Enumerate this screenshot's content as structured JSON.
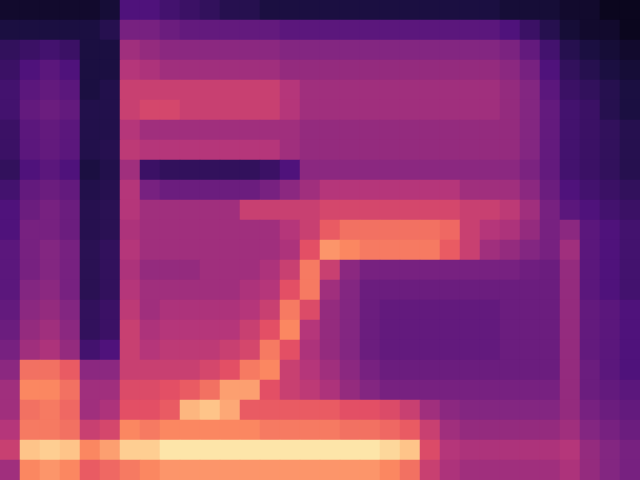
{
  "chart_data": {
    "type": "heatmap",
    "tick_labels": false,
    "color_range": [
      0,
      100
    ],
    "values": [
      [
        8,
        8,
        8,
        8,
        8,
        10,
        25,
        25,
        22,
        20,
        18,
        15,
        15,
        12,
        12,
        12,
        12,
        12,
        12,
        12,
        12,
        12,
        12,
        12,
        12,
        10,
        10,
        10,
        8,
        8,
        5,
        5
      ],
      [
        12,
        12,
        12,
        12,
        12,
        15,
        35,
        35,
        32,
        30,
        30,
        30,
        30,
        30,
        28,
        28,
        28,
        28,
        28,
        28,
        28,
        28,
        28,
        28,
        28,
        25,
        20,
        15,
        10,
        8,
        8,
        5
      ],
      [
        18,
        20,
        22,
        20,
        12,
        12,
        45,
        42,
        40,
        40,
        40,
        40,
        40,
        40,
        38,
        38,
        38,
        38,
        38,
        38,
        38,
        38,
        38,
        38,
        38,
        36,
        30,
        22,
        15,
        12,
        10,
        8
      ],
      [
        20,
        25,
        28,
        25,
        12,
        12,
        50,
        48,
        45,
        45,
        45,
        45,
        45,
        45,
        42,
        42,
        42,
        42,
        42,
        42,
        42,
        42,
        42,
        42,
        42,
        40,
        35,
        25,
        18,
        15,
        12,
        10
      ],
      [
        22,
        28,
        30,
        28,
        12,
        14,
        55,
        55,
        55,
        55,
        55,
        55,
        55,
        55,
        50,
        45,
        45,
        45,
        45,
        45,
        45,
        45,
        45,
        45,
        45,
        42,
        38,
        28,
        20,
        18,
        15,
        12
      ],
      [
        22,
        30,
        32,
        30,
        14,
        14,
        55,
        58,
        58,
        55,
        55,
        55,
        55,
        55,
        50,
        45,
        45,
        45,
        45,
        45,
        45,
        45,
        45,
        45,
        45,
        42,
        38,
        30,
        22,
        20,
        15,
        12
      ],
      [
        20,
        28,
        30,
        28,
        14,
        14,
        50,
        45,
        45,
        45,
        45,
        45,
        45,
        45,
        45,
        42,
        42,
        42,
        42,
        42,
        42,
        42,
        42,
        42,
        42,
        42,
        38,
        30,
        22,
        20,
        18,
        15
      ],
      [
        20,
        28,
        30,
        28,
        14,
        15,
        52,
        50,
        50,
        50,
        50,
        50,
        50,
        50,
        45,
        42,
        42,
        42,
        42,
        42,
        42,
        42,
        42,
        42,
        42,
        42,
        38,
        30,
        22,
        20,
        18,
        15
      ],
      [
        18,
        25,
        28,
        25,
        12,
        14,
        45,
        20,
        18,
        18,
        18,
        18,
        18,
        20,
        25,
        40,
        40,
        40,
        40,
        40,
        40,
        40,
        40,
        40,
        40,
        40,
        36,
        30,
        22,
        20,
        18,
        15
      ],
      [
        22,
        30,
        32,
        30,
        14,
        15,
        50,
        35,
        32,
        32,
        32,
        32,
        32,
        35,
        40,
        45,
        50,
        50,
        50,
        50,
        50,
        50,
        50,
        45,
        45,
        45,
        40,
        32,
        25,
        22,
        20,
        18
      ],
      [
        25,
        32,
        35,
        32,
        15,
        16,
        50,
        45,
        45,
        45,
        45,
        45,
        55,
        55,
        55,
        55,
        58,
        58,
        58,
        58,
        58,
        58,
        58,
        55,
        55,
        52,
        45,
        35,
        28,
        25,
        22,
        20
      ],
      [
        25,
        35,
        35,
        32,
        15,
        16,
        48,
        45,
        45,
        45,
        45,
        45,
        45,
        45,
        50,
        55,
        65,
        70,
        70,
        70,
        70,
        70,
        68,
        55,
        50,
        48,
        42,
        35,
        40,
        28,
        25,
        22
      ],
      [
        28,
        35,
        38,
        35,
        16,
        18,
        50,
        45,
        45,
        45,
        45,
        45,
        45,
        45,
        48,
        62,
        78,
        75,
        72,
        72,
        72,
        72,
        65,
        55,
        45,
        42,
        38,
        35,
        45,
        28,
        25,
        22
      ],
      [
        28,
        35,
        38,
        35,
        16,
        18,
        48,
        42,
        42,
        42,
        45,
        45,
        45,
        48,
        55,
        72,
        55,
        40,
        35,
        35,
        35,
        35,
        35,
        35,
        35,
        35,
        33,
        32,
        42,
        28,
        25,
        22
      ],
      [
        28,
        38,
        40,
        35,
        16,
        18,
        50,
        45,
        45,
        45,
        45,
        45,
        48,
        50,
        62,
        72,
        45,
        38,
        32,
        32,
        32,
        32,
        32,
        32,
        32,
        32,
        32,
        32,
        42,
        28,
        25,
        22
      ],
      [
        30,
        40,
        42,
        38,
        18,
        20,
        52,
        45,
        48,
        48,
        48,
        48,
        50,
        55,
        72,
        60,
        42,
        38,
        32,
        30,
        30,
        30,
        30,
        30,
        30,
        32,
        32,
        32,
        42,
        30,
        28,
        25
      ],
      [
        32,
        42,
        45,
        40,
        18,
        20,
        55,
        48,
        50,
        50,
        50,
        50,
        55,
        62,
        75,
        50,
        42,
        38,
        32,
        30,
        30,
        30,
        30,
        30,
        30,
        32,
        32,
        32,
        42,
        30,
        28,
        25
      ],
      [
        35,
        45,
        48,
        42,
        22,
        25,
        55,
        50,
        52,
        52,
        52,
        55,
        58,
        72,
        62,
        48,
        42,
        38,
        32,
        30,
        30,
        30,
        30,
        30,
        30,
        32,
        32,
        32,
        42,
        30,
        28,
        25
      ],
      [
        40,
        70,
        70,
        65,
        40,
        40,
        55,
        55,
        55,
        55,
        58,
        62,
        72,
        75,
        55,
        50,
        45,
        40,
        35,
        32,
        32,
        32,
        32,
        32,
        32,
        32,
        32,
        32,
        42,
        32,
        28,
        25
      ],
      [
        45,
        75,
        75,
        70,
        45,
        45,
        60,
        60,
        62,
        65,
        70,
        80,
        80,
        62,
        55,
        52,
        48,
        42,
        38,
        35,
        35,
        35,
        35,
        35,
        35,
        35,
        35,
        35,
        42,
        32,
        30,
        28
      ],
      [
        45,
        70,
        72,
        68,
        45,
        48,
        62,
        62,
        65,
        85,
        88,
        82,
        65,
        65,
        65,
        65,
        65,
        62,
        62,
        60,
        55,
        45,
        40,
        38,
        38,
        38,
        38,
        38,
        42,
        35,
        32,
        30
      ],
      [
        50,
        72,
        72,
        70,
        55,
        58,
        75,
        72,
        75,
        75,
        75,
        75,
        75,
        72,
        72,
        72,
        72,
        70,
        70,
        68,
        65,
        55,
        45,
        42,
        42,
        42,
        42,
        42,
        45,
        38,
        35,
        32
      ],
      [
        55,
        88,
        90,
        88,
        75,
        80,
        90,
        90,
        95,
        95,
        95,
        95,
        95,
        95,
        95,
        95,
        95,
        95,
        95,
        92,
        88,
        60,
        50,
        48,
        48,
        48,
        48,
        48,
        50,
        42,
        38,
        35
      ],
      [
        45,
        75,
        78,
        75,
        65,
        68,
        72,
        75,
        78,
        78,
        78,
        78,
        78,
        78,
        78,
        78,
        78,
        78,
        78,
        75,
        70,
        55,
        48,
        45,
        45,
        45,
        45,
        45,
        48,
        42,
        38,
        35
      ]
    ]
  }
}
